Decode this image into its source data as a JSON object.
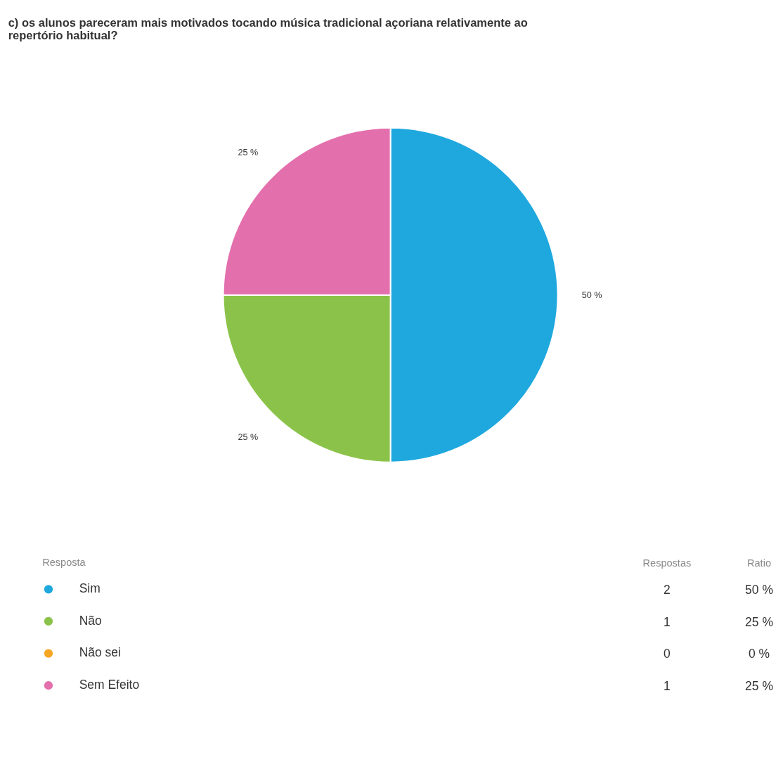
{
  "chart_data": [
    {
      "type": "pie",
      "title": "c) os alunos pareceram mais motivados tocando música tradicional açoriana relativamente ao repertório habitual?",
      "categories": [
        "Sim",
        "Não",
        "Não sei",
        "Sem Efeito"
      ],
      "values": [
        50,
        25,
        0,
        25
      ],
      "colors": [
        "#1fa8de",
        "#8bc34a",
        "#f5a623",
        "#e36fad"
      ],
      "value_labels": [
        "50 %",
        "25 %",
        "0 %",
        "25 %"
      ],
      "legend_title": "Resposta",
      "annotations": [
        "Ratio"
      ],
      "legend": "bottom"
    },
    {
      "type": "other",
      "categories": [
        null,
        null,
        null,
        null
      ],
      "values": [
        2,
        1,
        0,
        1
      ],
      "data_labels": true,
      "annotations": [
        "Respostas"
      ]
    }
  ]
}
